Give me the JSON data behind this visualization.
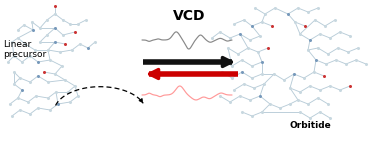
{
  "title": "VCD",
  "title_fontsize": 10,
  "title_fontweight": "bold",
  "label_left": "Linear\nprecursor",
  "label_right": "Orbitide",
  "label_fontsize": 6.5,
  "bg_color": "#ffffff",
  "gray_line_color": "#888888",
  "red_line_color": "#ff9999",
  "arrow_black_color": "#111111",
  "arrow_red_color": "#cc0000",
  "figsize": [
    3.78,
    1.41
  ],
  "dpi": 100,
  "bond_color": "#b8ccd8",
  "N_color": "#7799bb",
  "O_color": "#cc3333",
  "C_color": "#c8d8e0"
}
